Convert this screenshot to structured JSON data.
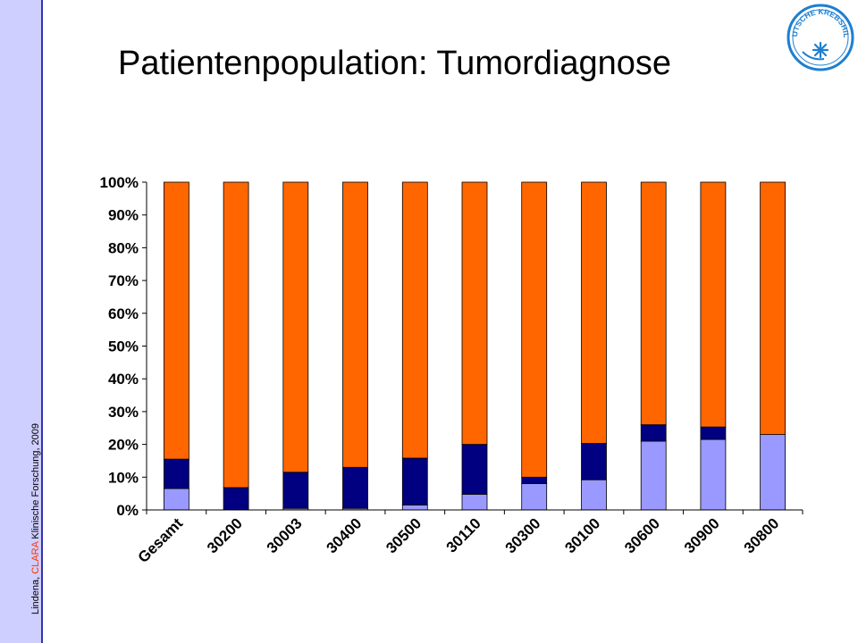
{
  "title": "Patientenpopulation: Tumordiagnose",
  "sidebar": {
    "citation_prefix": "Lindena, ",
    "citation_accent": "CLARA",
    "citation_suffix": " Klinische Forschung, 2009"
  },
  "logo": {
    "text_top": "DEUTSCHE KREBSHILFE",
    "icon": "star-icon",
    "color": "#1e7fd0"
  },
  "colors": {
    "sidebar_bg": "#cfcfff",
    "sidebar_border": "#3333aa",
    "accent": "#ff3300"
  },
  "chart_data": {
    "type": "bar",
    "stacked": true,
    "percent": true,
    "categories": [
      "Gesamt",
      "30200",
      "30003",
      "30400",
      "30500",
      "30110",
      "30300",
      "30100",
      "30600",
      "30900",
      "30800"
    ],
    "series": [
      {
        "color": "#9999ff",
        "values": [
          6.5,
          0,
          0.5,
          0.5,
          1.5,
          4.8,
          8,
          9.2,
          21,
          21.5,
          23
        ]
      },
      {
        "color": "#000080",
        "values": [
          9,
          6.8,
          11,
          12.5,
          14.3,
          15.2,
          2,
          11.1,
          5,
          3.8,
          0
        ]
      },
      {
        "color": "#ff6600",
        "values": [
          84.5,
          93.2,
          88.5,
          87,
          84.2,
          80,
          90,
          79.7,
          74,
          74.7,
          77
        ]
      }
    ],
    "ylim": [
      0,
      100
    ],
    "yticks": [
      "0%",
      "10%",
      "20%",
      "30%",
      "40%",
      "50%",
      "60%",
      "70%",
      "80%",
      "90%",
      "100%"
    ],
    "grid": false,
    "legend": "none"
  }
}
